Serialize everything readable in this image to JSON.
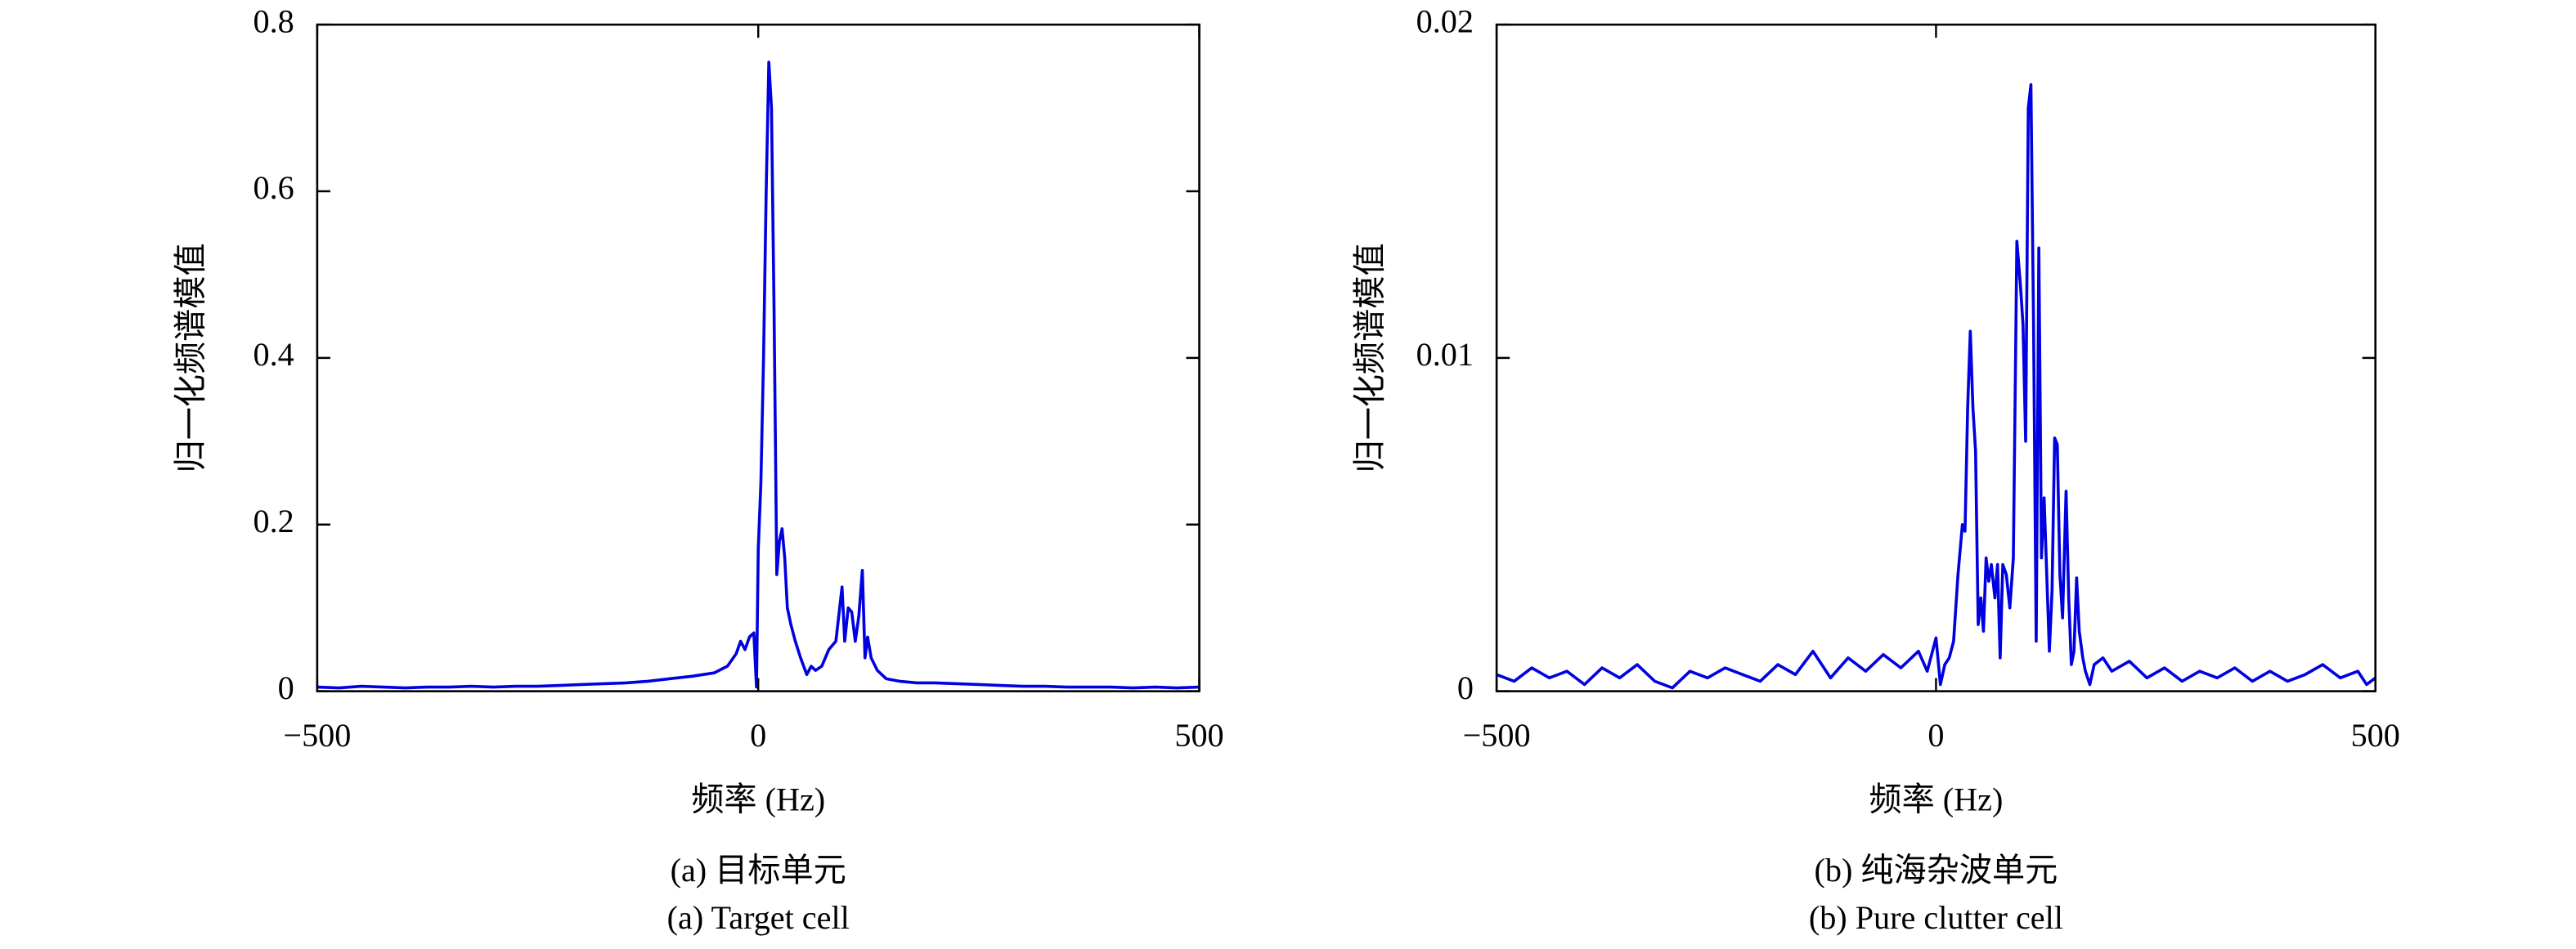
{
  "chart_data": [
    {
      "type": "line",
      "ylabel": "归一化频谱模值",
      "xlabel": "频率 (Hz)",
      "caption_cn": "(a) 目标单元",
      "caption_en": "(a) Target cell",
      "color": "#0000e0",
      "xlim": [
        -500,
        500
      ],
      "xticks": [
        {
          "value": -500,
          "label": "−500"
        },
        0,
        500
      ],
      "ylim": [
        0,
        0.8
      ],
      "yticks": [
        0,
        0.2,
        0.4,
        0.6,
        0.8
      ],
      "x": [
        -500,
        -475,
        -450,
        -425,
        -400,
        -375,
        -350,
        -325,
        -300,
        -275,
        -250,
        -225,
        -200,
        -175,
        -150,
        -125,
        -100,
        -75,
        -50,
        -35,
        -25,
        -20,
        -15,
        -10,
        -5,
        -2,
        0,
        3,
        6,
        9,
        12,
        15,
        18,
        21,
        24,
        27,
        30,
        33,
        37,
        42,
        48,
        55,
        60,
        65,
        72,
        80,
        88,
        95,
        98,
        102,
        106,
        110,
        114,
        118,
        121,
        124,
        128,
        135,
        145,
        160,
        180,
        200,
        225,
        250,
        275,
        300,
        325,
        350,
        375,
        400,
        425,
        450,
        475,
        500
      ],
      "values": [
        0.005,
        0.004,
        0.006,
        0.005,
        0.004,
        0.005,
        0.005,
        0.006,
        0.005,
        0.006,
        0.006,
        0.007,
        0.008,
        0.009,
        0.01,
        0.012,
        0.015,
        0.018,
        0.022,
        0.03,
        0.045,
        0.06,
        0.05,
        0.065,
        0.07,
        0.005,
        0.17,
        0.25,
        0.4,
        0.6,
        0.755,
        0.7,
        0.45,
        0.14,
        0.18,
        0.195,
        0.16,
        0.1,
        0.08,
        0.06,
        0.04,
        0.02,
        0.03,
        0.025,
        0.03,
        0.05,
        0.06,
        0.125,
        0.06,
        0.1,
        0.095,
        0.06,
        0.09,
        0.145,
        0.04,
        0.065,
        0.04,
        0.025,
        0.015,
        0.012,
        0.01,
        0.01,
        0.009,
        0.008,
        0.007,
        0.006,
        0.006,
        0.005,
        0.005,
        0.005,
        0.004,
        0.005,
        0.004,
        0.005
      ]
    },
    {
      "type": "line",
      "ylabel": "归一化频谱模值",
      "xlabel": "频率 (Hz)",
      "caption_cn": "(b) 纯海杂波单元",
      "caption_en": "(b) Pure clutter cell",
      "color": "#0000e0",
      "xlim": [
        -500,
        500
      ],
      "xticks": [
        {
          "value": -500,
          "label": "−500"
        },
        0,
        500
      ],
      "ylim": [
        0,
        0.02
      ],
      "yticks": [
        0,
        0.01,
        0.02
      ],
      "x": [
        -500,
        -480,
        -460,
        -440,
        -420,
        -400,
        -380,
        -360,
        -340,
        -320,
        -300,
        -280,
        -260,
        -240,
        -220,
        -200,
        -180,
        -160,
        -140,
        -120,
        -100,
        -80,
        -60,
        -40,
        -20,
        -10,
        0,
        5,
        10,
        15,
        20,
        25,
        30,
        33,
        36,
        39,
        42,
        45,
        48,
        51,
        54,
        57,
        60,
        63,
        67,
        70,
        73,
        76,
        80,
        84,
        88,
        92,
        96,
        99,
        102,
        105,
        108,
        111,
        114,
        117,
        120,
        123,
        126,
        129,
        132,
        135,
        138,
        141,
        144,
        148,
        151,
        154,
        157,
        160,
        163,
        167,
        170,
        175,
        180,
        190,
        200,
        220,
        240,
        260,
        280,
        300,
        320,
        340,
        360,
        380,
        400,
        420,
        440,
        460,
        480,
        490,
        500
      ],
      "values": [
        0.0005,
        0.0003,
        0.0007,
        0.0004,
        0.0006,
        0.0002,
        0.0007,
        0.0004,
        0.0008,
        0.0003,
        0.0001,
        0.0006,
        0.0004,
        0.0007,
        0.0005,
        0.0003,
        0.0008,
        0.0005,
        0.0012,
        0.0004,
        0.001,
        0.0006,
        0.0011,
        0.0007,
        0.0012,
        0.0006,
        0.0016,
        0.0002,
        0.0008,
        0.001,
        0.0015,
        0.0035,
        0.005,
        0.0048,
        0.0085,
        0.0108,
        0.0085,
        0.0072,
        0.002,
        0.0028,
        0.0018,
        0.004,
        0.0033,
        0.0038,
        0.0028,
        0.0038,
        0.001,
        0.0038,
        0.0035,
        0.0025,
        0.004,
        0.0135,
        0.0122,
        0.011,
        0.0075,
        0.0175,
        0.0182,
        0.011,
        0.0015,
        0.0133,
        0.004,
        0.0058,
        0.0035,
        0.0012,
        0.003,
        0.0076,
        0.0074,
        0.0035,
        0.0022,
        0.006,
        0.0028,
        0.0008,
        0.0012,
        0.0034,
        0.0018,
        0.001,
        0.0006,
        0.0002,
        0.0008,
        0.001,
        0.0006,
        0.0009,
        0.0004,
        0.0007,
        0.0003,
        0.0006,
        0.0004,
        0.0007,
        0.0003,
        0.0006,
        0.0003,
        0.0005,
        0.0008,
        0.0004,
        0.0006,
        0.0002,
        0.0004
      ]
    }
  ]
}
